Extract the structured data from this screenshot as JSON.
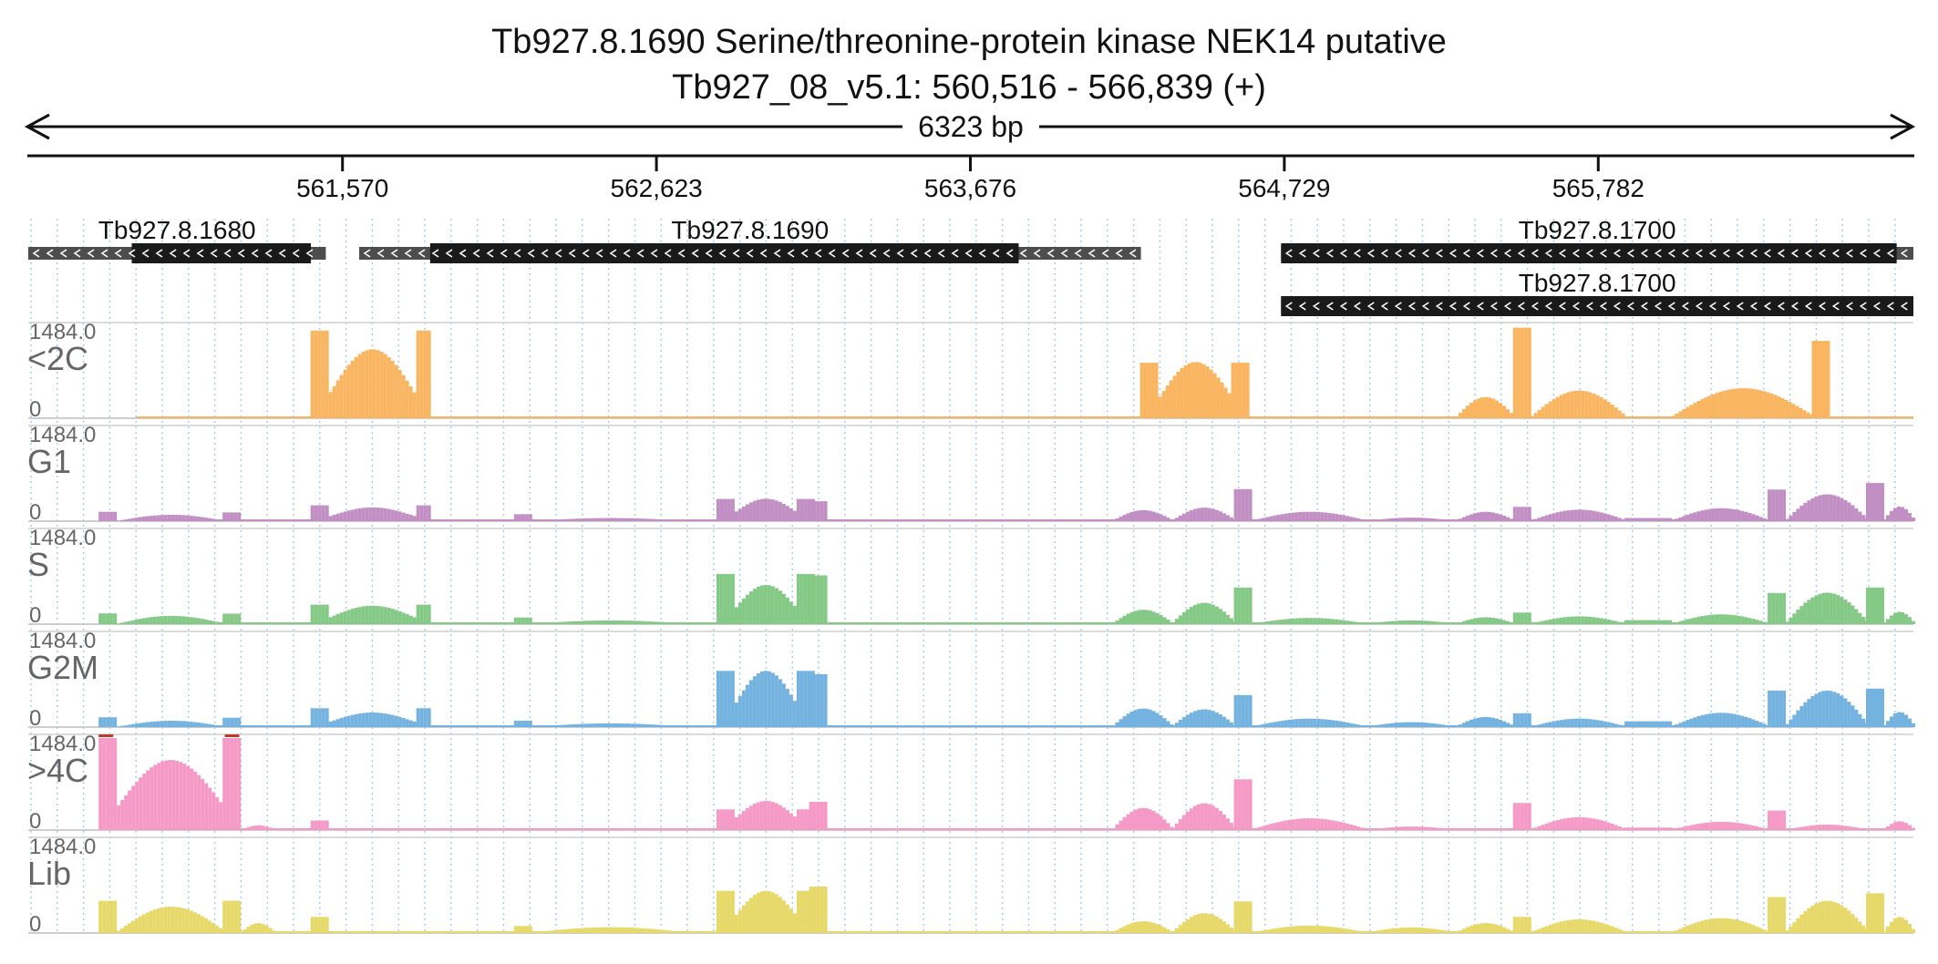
{
  "title": {
    "gene_line": "Tb927.8.1690  Serine/threonine-protein kinase NEK14  putative",
    "locus_line": "Tb927_08_v5.1: 560,516 - 566,839 (+)"
  },
  "span_label": "6323 bp",
  "chart_data": {
    "type": "area",
    "locus": {
      "chromosome": "Tb927_08_v5.1",
      "start": 560516,
      "end": 566839,
      "strand": "+"
    },
    "x_ticks": [
      {
        "value": 561570,
        "label": "561,570"
      },
      {
        "value": 562623,
        "label": "562,623"
      },
      {
        "value": 563676,
        "label": "563,676"
      },
      {
        "value": 564729,
        "label": "564,729"
      },
      {
        "value": 565782,
        "label": "565,782"
      }
    ],
    "ylim": [
      0,
      1484
    ],
    "y_max_label": "1484.0",
    "y_min_label": "0",
    "genes": [
      {
        "name": "Tb927.8.1680",
        "strand": "-",
        "start": 560516,
        "end": 561514,
        "cds_start": 560863,
        "cds_end": 561464,
        "row": 0
      },
      {
        "name": "Tb927.8.1690",
        "strand": "-",
        "start": 561626,
        "end": 564248,
        "cds_start": 561864,
        "cds_end": 563838,
        "row": 0
      },
      {
        "name": "Tb927.8.1700",
        "strand": "-",
        "start": 564718,
        "end": 566839,
        "cds_start": 564718,
        "cds_end": 566783,
        "row": 0
      },
      {
        "name": "Tb927.8.1700",
        "strand": "-",
        "start": 564718,
        "end": 566839,
        "cds_start": 564718,
        "cds_end": 566839,
        "row": 1
      }
    ],
    "series": [
      {
        "name": "<2C",
        "color": "#f9b55f",
        "segments": [
          {
            "start": 561463,
            "end": 561866,
            "shape": "bowl",
            "edge": 1414,
            "peak": 1112,
            "edge_width": 57
          },
          {
            "start": 564245,
            "end": 564607,
            "shape": "bowl",
            "edge": 895,
            "peak": 907,
            "edge_width": 57
          },
          {
            "start": 565301,
            "end": 565496,
            "shape": "hump",
            "peak": 340
          },
          {
            "start": 565496,
            "end": 565554,
            "shape": "flat",
            "peak": 1460
          },
          {
            "start": 565554,
            "end": 565870,
            "shape": "hump",
            "peak": 446
          },
          {
            "start": 565870,
            "end": 566027,
            "shape": "flat",
            "peak": 10
          },
          {
            "start": 566027,
            "end": 566498,
            "shape": "hump",
            "peak": 484
          },
          {
            "start": 566498,
            "end": 566555,
            "shape": "flat",
            "peak": 1247
          }
        ]
      },
      {
        "name": "G1",
        "color": "#c28fc4",
        "segments": [
          {
            "start": 560752,
            "end": 560812,
            "shape": "flat",
            "peak": 151
          },
          {
            "start": 560812,
            "end": 561168,
            "shape": "hump",
            "peak": 103
          },
          {
            "start": 561168,
            "end": 561224,
            "shape": "flat",
            "peak": 141
          },
          {
            "start": 561463,
            "end": 561866,
            "shape": "bowl",
            "edge": 256,
            "peak": 222,
            "edge_width": 57
          },
          {
            "start": 562145,
            "end": 562205,
            "shape": "flat",
            "peak": 113
          },
          {
            "start": 562205,
            "end": 562724,
            "shape": "hump",
            "peak": 51
          },
          {
            "start": 562826,
            "end": 562883,
            "shape": "flat",
            "peak": 137
          },
          {
            "start": 562824,
            "end": 563145,
            "shape": "bowl",
            "edge": 358,
            "peak": 362,
            "edge_width": 52
          },
          {
            "start": 563135,
            "end": 563194,
            "shape": "flat",
            "peak": 322
          },
          {
            "start": 564150,
            "end": 564350,
            "shape": "hump",
            "peak": 178
          },
          {
            "start": 564350,
            "end": 564560,
            "shape": "hump",
            "peak": 219
          },
          {
            "start": 564560,
            "end": 564617,
            "shape": "flat",
            "peak": 517
          },
          {
            "start": 564617,
            "end": 565000,
            "shape": "hump",
            "peak": 152
          },
          {
            "start": 565000,
            "end": 565300,
            "shape": "hump",
            "peak": 57
          },
          {
            "start": 565301,
            "end": 565496,
            "shape": "hump",
            "peak": 151
          },
          {
            "start": 565496,
            "end": 565554,
            "shape": "flat",
            "peak": 231
          },
          {
            "start": 565554,
            "end": 565870,
            "shape": "hump",
            "peak": 186
          },
          {
            "start": 565870,
            "end": 566027,
            "shape": "flat",
            "peak": 52
          },
          {
            "start": 566027,
            "end": 566350,
            "shape": "hump",
            "peak": 209
          },
          {
            "start": 566350,
            "end": 566409,
            "shape": "flat",
            "peak": 510
          },
          {
            "start": 566409,
            "end": 566680,
            "shape": "hump",
            "peak": 434
          },
          {
            "start": 566680,
            "end": 566735,
            "shape": "flat",
            "peak": 616
          },
          {
            "start": 566735,
            "end": 566839,
            "shape": "hump",
            "peak": 236
          }
        ]
      },
      {
        "name": "S",
        "color": "#85c987",
        "segments": [
          {
            "start": 560752,
            "end": 560812,
            "shape": "flat",
            "peak": 173
          },
          {
            "start": 560812,
            "end": 561168,
            "shape": "hump",
            "peak": 134
          },
          {
            "start": 561168,
            "end": 561224,
            "shape": "flat",
            "peak": 169
          },
          {
            "start": 561463,
            "end": 561866,
            "shape": "bowl",
            "edge": 315,
            "peak": 297,
            "edge_width": 57
          },
          {
            "start": 562145,
            "end": 562205,
            "shape": "flat",
            "peak": 107
          },
          {
            "start": 562205,
            "end": 562724,
            "shape": "hump",
            "peak": 60
          },
          {
            "start": 562826,
            "end": 562883,
            "shape": "flat",
            "peak": 127
          },
          {
            "start": 562824,
            "end": 563145,
            "shape": "bowl",
            "edge": 810,
            "peak": 632,
            "edge_width": 52
          },
          {
            "start": 563135,
            "end": 563194,
            "shape": "flat",
            "peak": 786
          },
          {
            "start": 564150,
            "end": 564350,
            "shape": "hump",
            "peak": 232
          },
          {
            "start": 564350,
            "end": 564560,
            "shape": "hump",
            "peak": 344
          },
          {
            "start": 564560,
            "end": 564617,
            "shape": "flat",
            "peak": 591
          },
          {
            "start": 564617,
            "end": 565000,
            "shape": "hump",
            "peak": 100
          },
          {
            "start": 565000,
            "end": 565300,
            "shape": "hump",
            "peak": 60
          },
          {
            "start": 565301,
            "end": 565496,
            "shape": "hump",
            "peak": 111
          },
          {
            "start": 565496,
            "end": 565554,
            "shape": "flat",
            "peak": 186
          },
          {
            "start": 565554,
            "end": 565870,
            "shape": "hump",
            "peak": 126
          },
          {
            "start": 565870,
            "end": 566027,
            "shape": "flat",
            "peak": 65
          },
          {
            "start": 566027,
            "end": 566350,
            "shape": "hump",
            "peak": 158
          },
          {
            "start": 566350,
            "end": 566409,
            "shape": "flat",
            "peak": 502
          },
          {
            "start": 566409,
            "end": 566680,
            "shape": "hump",
            "peak": 508
          },
          {
            "start": 566680,
            "end": 566735,
            "shape": "flat",
            "peak": 591
          },
          {
            "start": 566735,
            "end": 566839,
            "shape": "hump",
            "peak": 199
          }
        ]
      },
      {
        "name": "G2M",
        "color": "#74b3e0",
        "segments": [
          {
            "start": 560752,
            "end": 560812,
            "shape": "flat",
            "peak": 158
          },
          {
            "start": 560812,
            "end": 561168,
            "shape": "hump",
            "peak": 103
          },
          {
            "start": 561168,
            "end": 561224,
            "shape": "flat",
            "peak": 151
          },
          {
            "start": 561463,
            "end": 561866,
            "shape": "bowl",
            "edge": 304,
            "peak": 235,
            "edge_width": 57
          },
          {
            "start": 562145,
            "end": 562205,
            "shape": "flat",
            "peak": 103
          },
          {
            "start": 562205,
            "end": 562724,
            "shape": "hump",
            "peak": 60
          },
          {
            "start": 562826,
            "end": 562883,
            "shape": "flat",
            "peak": 141
          },
          {
            "start": 562824,
            "end": 563145,
            "shape": "bowl",
            "edge": 906,
            "peak": 908,
            "edge_width": 52
          },
          {
            "start": 563135,
            "end": 563194,
            "shape": "flat",
            "peak": 852
          },
          {
            "start": 564150,
            "end": 564350,
            "shape": "hump",
            "peak": 300
          },
          {
            "start": 564350,
            "end": 564560,
            "shape": "hump",
            "peak": 287
          },
          {
            "start": 564560,
            "end": 564617,
            "shape": "flat",
            "peak": 515
          },
          {
            "start": 564617,
            "end": 565000,
            "shape": "hump",
            "peak": 137
          },
          {
            "start": 565000,
            "end": 565300,
            "shape": "hump",
            "peak": 80
          },
          {
            "start": 565301,
            "end": 565496,
            "shape": "hump",
            "peak": 163
          },
          {
            "start": 565496,
            "end": 565554,
            "shape": "flat",
            "peak": 224
          },
          {
            "start": 565554,
            "end": 565870,
            "shape": "hump",
            "peak": 137
          },
          {
            "start": 565870,
            "end": 566027,
            "shape": "flat",
            "peak": 94
          },
          {
            "start": 566027,
            "end": 566350,
            "shape": "hump",
            "peak": 231
          },
          {
            "start": 566350,
            "end": 566409,
            "shape": "flat",
            "peak": 589
          },
          {
            "start": 566409,
            "end": 566680,
            "shape": "hump",
            "peak": 589
          },
          {
            "start": 566680,
            "end": 566735,
            "shape": "flat",
            "peak": 620
          },
          {
            "start": 566735,
            "end": 566839,
            "shape": "hump",
            "peak": 244
          }
        ]
      },
      {
        "name": ">4C",
        "color": "#f59ac6",
        "segments": [
          {
            "start": 560752,
            "end": 561224,
            "shape": "bowl",
            "edge": 1484,
            "peak": 1130,
            "edge_width": 60
          },
          {
            "start": 561224,
            "end": 561340,
            "shape": "hump",
            "peak": 76
          },
          {
            "start": 561463,
            "end": 561524,
            "shape": "flat",
            "peak": 155
          },
          {
            "start": 562824,
            "end": 563145,
            "shape": "bowl",
            "edge": 333,
            "peak": 471,
            "edge_width": 52
          },
          {
            "start": 563135,
            "end": 563194,
            "shape": "flat",
            "peak": 455
          },
          {
            "start": 564150,
            "end": 564350,
            "shape": "hump",
            "peak": 356
          },
          {
            "start": 564350,
            "end": 564560,
            "shape": "hump",
            "peak": 431
          },
          {
            "start": 564560,
            "end": 564617,
            "shape": "flat",
            "peak": 818
          },
          {
            "start": 564617,
            "end": 565000,
            "shape": "hump",
            "peak": 190
          },
          {
            "start": 565000,
            "end": 565300,
            "shape": "hump",
            "peak": 56
          },
          {
            "start": 565496,
            "end": 565554,
            "shape": "flat",
            "peak": 436
          },
          {
            "start": 565554,
            "end": 565870,
            "shape": "hump",
            "peak": 208
          },
          {
            "start": 565870,
            "end": 566027,
            "shape": "flat",
            "peak": 41
          },
          {
            "start": 566027,
            "end": 566350,
            "shape": "hump",
            "peak": 134
          },
          {
            "start": 566350,
            "end": 566409,
            "shape": "flat",
            "peak": 315
          },
          {
            "start": 566409,
            "end": 566680,
            "shape": "hump",
            "peak": 88
          },
          {
            "start": 566735,
            "end": 566839,
            "shape": "hump",
            "peak": 141
          }
        ]
      },
      {
        "name": "Lib",
        "color": "#e6d96a",
        "segments": [
          {
            "start": 560752,
            "end": 560812,
            "shape": "flat",
            "peak": 520
          },
          {
            "start": 560812,
            "end": 561168,
            "shape": "hump",
            "peak": 425
          },
          {
            "start": 561168,
            "end": 561224,
            "shape": "flat",
            "peak": 520
          },
          {
            "start": 561224,
            "end": 561340,
            "shape": "hump",
            "peak": 160
          },
          {
            "start": 561463,
            "end": 561524,
            "shape": "flat",
            "peak": 260
          },
          {
            "start": 562145,
            "end": 562205,
            "shape": "flat",
            "peak": 113
          },
          {
            "start": 562205,
            "end": 562724,
            "shape": "hump",
            "peak": 94
          },
          {
            "start": 562826,
            "end": 562883,
            "shape": "flat",
            "peak": 170
          },
          {
            "start": 562824,
            "end": 563145,
            "shape": "bowl",
            "edge": 680,
            "peak": 680,
            "edge_width": 52
          },
          {
            "start": 563135,
            "end": 563194,
            "shape": "flat",
            "peak": 750
          },
          {
            "start": 564150,
            "end": 564350,
            "shape": "hump",
            "peak": 190
          },
          {
            "start": 564350,
            "end": 564560,
            "shape": "hump",
            "peak": 320
          },
          {
            "start": 564560,
            "end": 564617,
            "shape": "flat",
            "peak": 510
          },
          {
            "start": 564617,
            "end": 565000,
            "shape": "hump",
            "peak": 120
          },
          {
            "start": 565000,
            "end": 565300,
            "shape": "hump",
            "peak": 90
          },
          {
            "start": 565301,
            "end": 565496,
            "shape": "hump",
            "peak": 160
          },
          {
            "start": 565496,
            "end": 565554,
            "shape": "flat",
            "peak": 260
          },
          {
            "start": 565554,
            "end": 565870,
            "shape": "hump",
            "peak": 220
          },
          {
            "start": 566027,
            "end": 566350,
            "shape": "hump",
            "peak": 240
          },
          {
            "start": 566350,
            "end": 566409,
            "shape": "flat",
            "peak": 580
          },
          {
            "start": 566409,
            "end": 566680,
            "shape": "hump",
            "peak": 520
          },
          {
            "start": 566680,
            "end": 566735,
            "shape": "flat",
            "peak": 640
          },
          {
            "start": 566735,
            "end": 566839,
            "shape": "hump",
            "peak": 260
          }
        ]
      }
    ]
  }
}
